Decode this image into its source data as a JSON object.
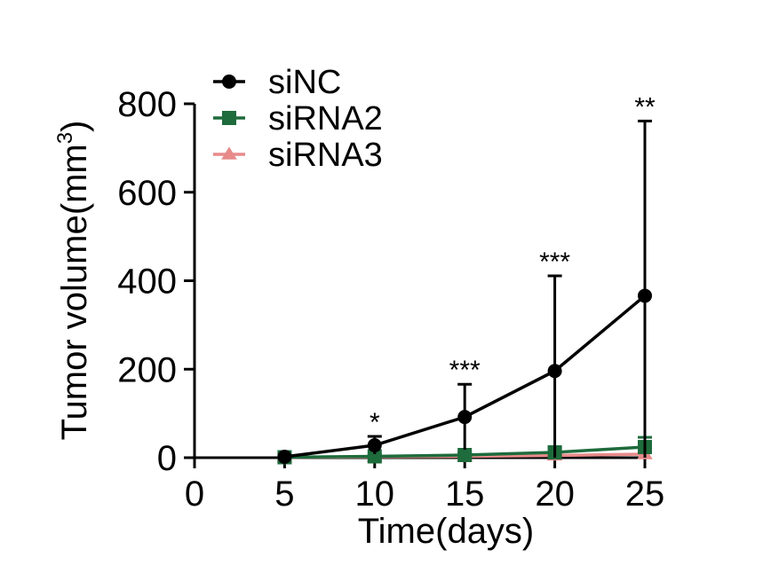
{
  "chart_data": {
    "type": "line",
    "xlabel": "Time(days)",
    "ylabel": "Tumor volume(mm",
    "ylabel_sup": "3",
    "ylabel_close": ")",
    "xlim": [
      0,
      25
    ],
    "ylim": [
      0,
      800
    ],
    "x_ticks": [
      "0",
      "5",
      "10",
      "15",
      "20",
      "25"
    ],
    "y_ticks": [
      "0",
      "200",
      "400",
      "600",
      "800"
    ],
    "grid": false,
    "legend_position": "top-left",
    "x": [
      5,
      10,
      15,
      20,
      25
    ],
    "series": [
      {
        "name": "siNC",
        "marker": "circle",
        "color": "#000000",
        "values": [
          2,
          28,
          92,
          196,
          366
        ],
        "error": [
          0,
          20,
          74,
          215,
          395
        ]
      },
      {
        "name": "siRNA2",
        "marker": "square",
        "color": "#1e6b3c",
        "values": [
          1,
          3,
          6,
          12,
          24
        ],
        "error": [
          0,
          3,
          5,
          10,
          22
        ]
      },
      {
        "name": "siRNA3",
        "marker": "triangle",
        "color": "#e88a8a",
        "values": [
          1,
          2,
          3,
          5,
          8
        ],
        "error": [
          0,
          1,
          2,
          4,
          6
        ]
      }
    ],
    "annotations": [
      {
        "x": 10,
        "text": "*"
      },
      {
        "x": 15,
        "text": "***"
      },
      {
        "x": 20,
        "text": "***"
      },
      {
        "x": 25,
        "text": "**"
      }
    ]
  }
}
